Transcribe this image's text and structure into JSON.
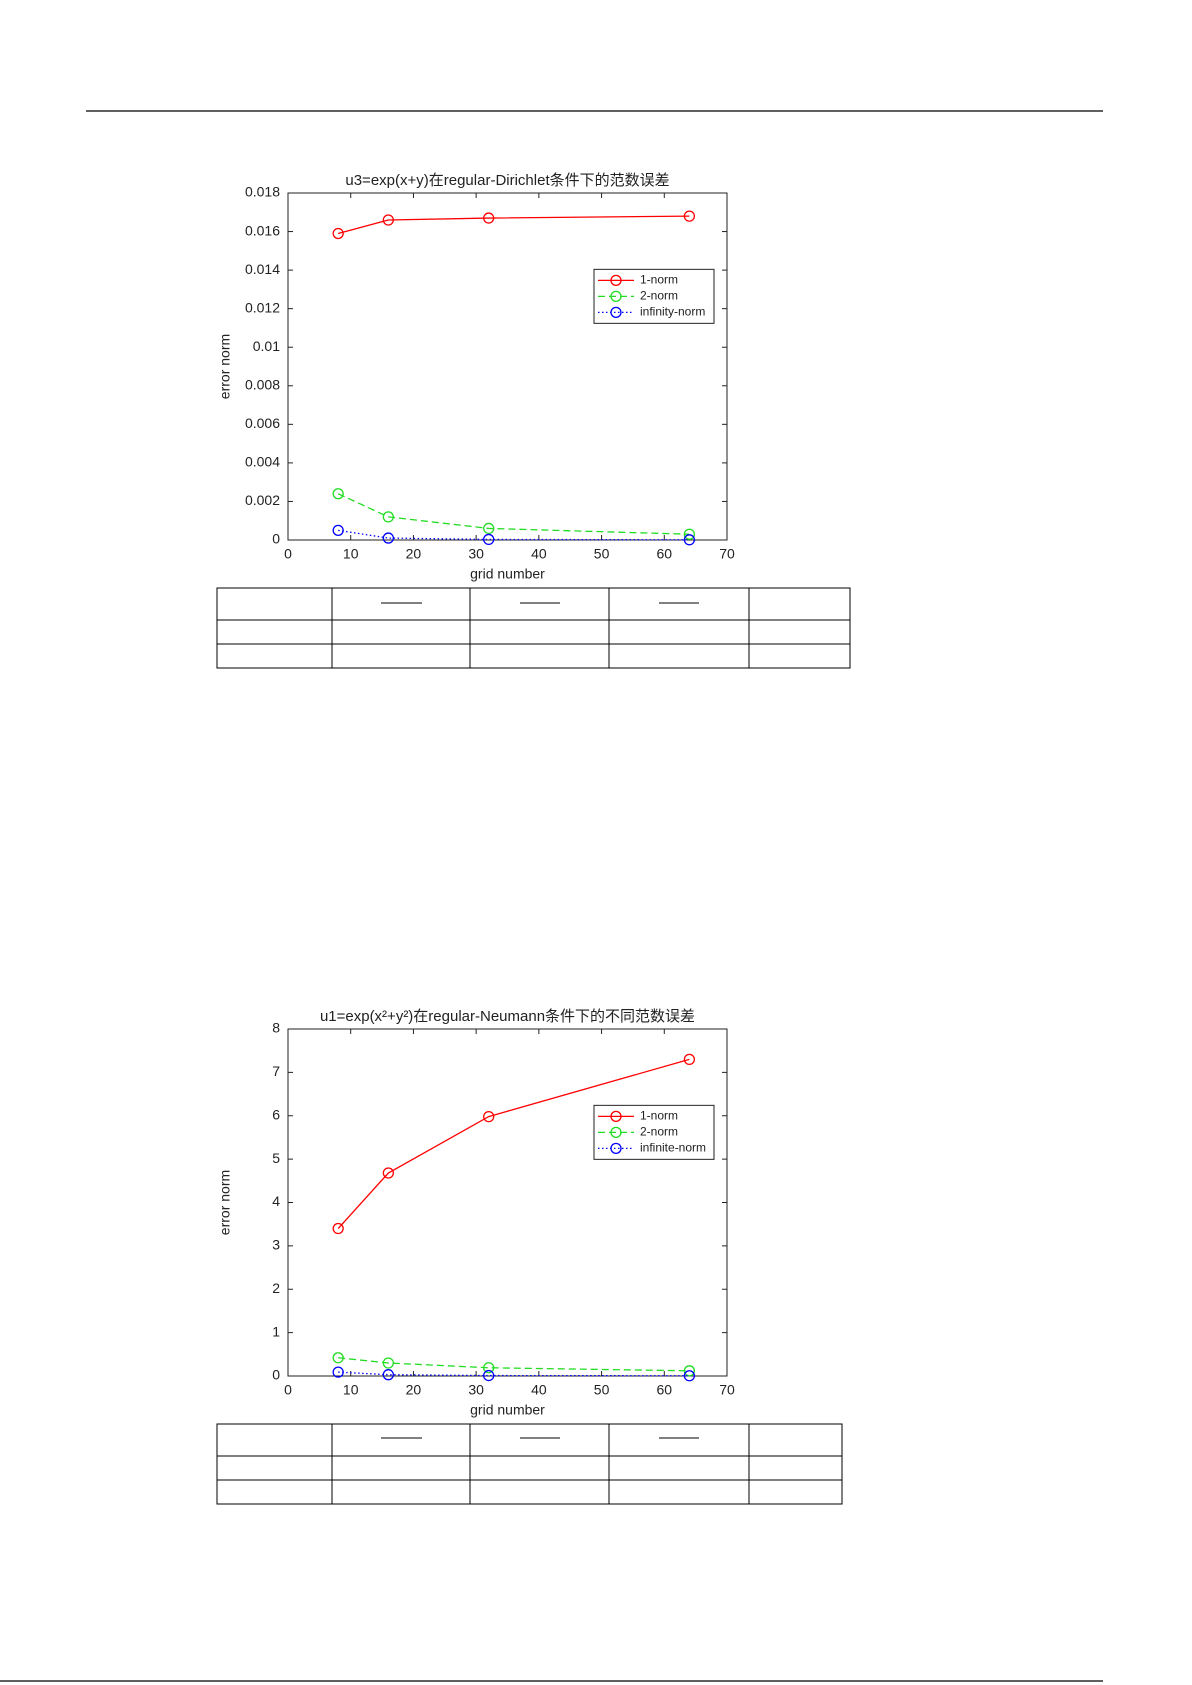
{
  "chart_data": [
    {
      "type": "line",
      "title": "u3=exp(x+y)在regular-Dirichlet条件下的范数误差",
      "xlabel": "grid number",
      "ylabel": "error norm",
      "x": [
        8,
        16,
        32,
        64
      ],
      "xlim": [
        0,
        70
      ],
      "xticks": [
        0,
        10,
        20,
        30,
        40,
        50,
        60,
        70
      ],
      "ylim": [
        0,
        0.018
      ],
      "yticks": [
        0,
        0.002,
        0.004,
        0.006,
        0.008,
        0.01,
        0.012,
        0.014,
        0.016,
        0.018
      ],
      "legend": "northeast",
      "series": [
        {
          "name": "1-norm",
          "color": "#ff0000",
          "linestyle": "solid",
          "values": [
            0.0159,
            0.0166,
            0.0167,
            0.0168
          ]
        },
        {
          "name": "2-norm",
          "color": "#22dd22",
          "linestyle": "dashed",
          "values": [
            0.0024,
            0.0012,
            0.0006,
            0.0003
          ]
        },
        {
          "name": "infinity-norm",
          "color": "#0000ff",
          "linestyle": "dotted",
          "values": [
            0.0005,
            0.0001,
            3e-05,
            1e-05
          ]
        }
      ]
    },
    {
      "type": "line",
      "title": "u1=exp(x²+y²)在regular-Neumann条件下的不同范数误差",
      "xlabel": "grid number",
      "ylabel": "error norm",
      "x": [
        8,
        16,
        32,
        64
      ],
      "xlim": [
        0,
        70
      ],
      "xticks": [
        0,
        10,
        20,
        30,
        40,
        50,
        60,
        70
      ],
      "ylim": [
        0,
        8
      ],
      "yticks": [
        0,
        1,
        2,
        3,
        4,
        5,
        6,
        7,
        8
      ],
      "legend": "northeast",
      "series": [
        {
          "name": "1-norm",
          "color": "#ff0000",
          "linestyle": "solid",
          "values": [
            3.4,
            4.68,
            5.98,
            7.3
          ]
        },
        {
          "name": "2-norm",
          "color": "#22dd22",
          "linestyle": "dashed",
          "values": [
            0.42,
            0.3,
            0.19,
            0.12
          ]
        },
        {
          "name": "infinite-norm",
          "color": "#0000ff",
          "linestyle": "dotted",
          "values": [
            0.09,
            0.03,
            0.01,
            0.005
          ]
        }
      ]
    }
  ]
}
